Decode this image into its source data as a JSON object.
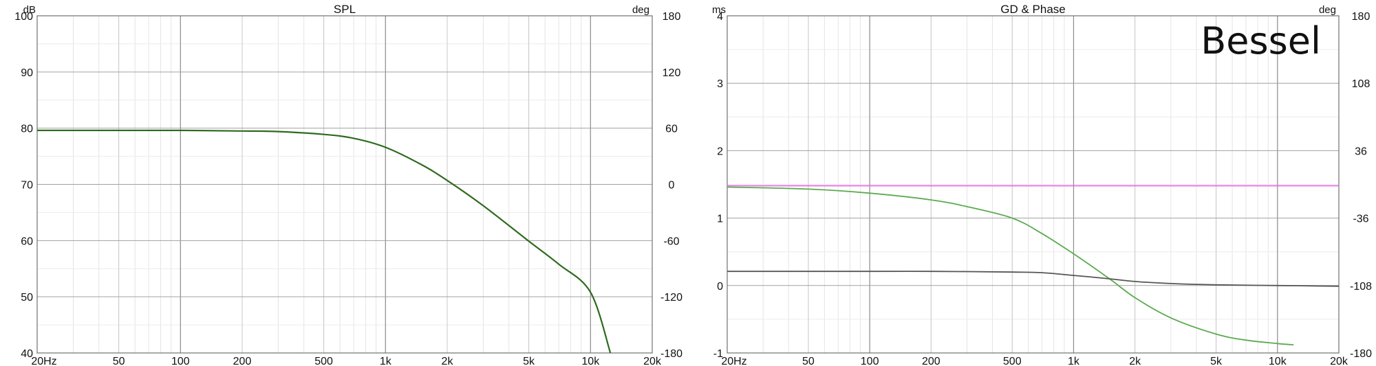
{
  "chart_data": [
    {
      "type": "line",
      "title": "SPL",
      "x_scale": "log",
      "xlim": [
        20,
        20000
      ],
      "x_ticks": [
        20,
        50,
        100,
        200,
        500,
        1000,
        2000,
        5000,
        10000,
        20000
      ],
      "x_tick_labels": [
        "20Hz",
        "50",
        "100",
        "200",
        "500",
        "1k",
        "2k",
        "5k",
        "10k",
        "20k"
      ],
      "left_axis": {
        "unit": "dB",
        "ylim": [
          40,
          100
        ],
        "ticks": [
          40,
          50,
          60,
          70,
          80,
          90,
          100
        ],
        "tick_labels": [
          "40",
          "50",
          "60",
          "70",
          "80",
          "90",
          "100"
        ]
      },
      "right_axis": {
        "unit": "deg",
        "ylim": [
          -180,
          180
        ],
        "ticks": [
          -180,
          -120,
          -60,
          0,
          60,
          120,
          180
        ],
        "tick_labels": [
          "-180",
          "-120",
          "-60",
          "0",
          "60",
          "120",
          "180"
        ]
      },
      "grid": true,
      "series": [
        {
          "axis": "left",
          "color": "#2f6a1e",
          "x": [
            20,
            50,
            100,
            200,
            300,
            500,
            700,
            1000,
            1500,
            2000,
            3000,
            5000,
            7000,
            10000,
            12500
          ],
          "values": [
            79.6,
            79.6,
            79.6,
            79.5,
            79.4,
            78.9,
            78.2,
            76.6,
            73.5,
            70.7,
            66.2,
            59.9,
            55.8,
            50.8,
            40.0
          ]
        }
      ]
    },
    {
      "type": "line",
      "title": "GD & Phase",
      "annotation": "Bessel",
      "x_scale": "log",
      "xlim": [
        20,
        20000
      ],
      "x_ticks": [
        20,
        50,
        100,
        200,
        500,
        1000,
        2000,
        5000,
        10000,
        20000
      ],
      "x_tick_labels": [
        "20Hz",
        "50",
        "100",
        "200",
        "500",
        "1k",
        "2k",
        "5k",
        "10k",
        "20k"
      ],
      "left_axis": {
        "unit": "ms",
        "ylim": [
          -1,
          4
        ],
        "ticks": [
          -1,
          0,
          1,
          2,
          3,
          4
        ],
        "tick_labels": [
          "-1",
          "0",
          "1",
          "2",
          "3",
          "4"
        ]
      },
      "right_axis": {
        "unit": "deg",
        "ylim": [
          -180,
          180
        ],
        "ticks": [
          -180,
          -108,
          -36,
          36,
          108,
          180
        ],
        "tick_labels": [
          "-180",
          "-108",
          "-36",
          "36",
          "108",
          "180"
        ]
      },
      "grid": true,
      "series": [
        {
          "axis": "left",
          "color": "#e86ae8",
          "x": [
            20,
            20000
          ],
          "values": [
            1.48,
            1.48
          ]
        },
        {
          "axis": "left",
          "color": "#5aaa4e",
          "x": [
            20,
            50,
            100,
            200,
            300,
            500,
            700,
            1000,
            1500,
            2000,
            3000,
            5000,
            7000,
            10000,
            12000
          ],
          "values": [
            1.46,
            1.43,
            1.37,
            1.27,
            1.17,
            1.0,
            0.77,
            0.47,
            0.1,
            -0.18,
            -0.48,
            -0.72,
            -0.81,
            -0.86,
            -0.88
          ]
        },
        {
          "axis": "left",
          "color": "#555555",
          "x": [
            20,
            100,
            200,
            500,
            700,
            1000,
            1500,
            2000,
            3000,
            5000,
            10000,
            20000
          ],
          "values": [
            0.21,
            0.21,
            0.21,
            0.2,
            0.19,
            0.15,
            0.1,
            0.06,
            0.03,
            0.01,
            0.0,
            -0.01
          ]
        }
      ]
    }
  ]
}
